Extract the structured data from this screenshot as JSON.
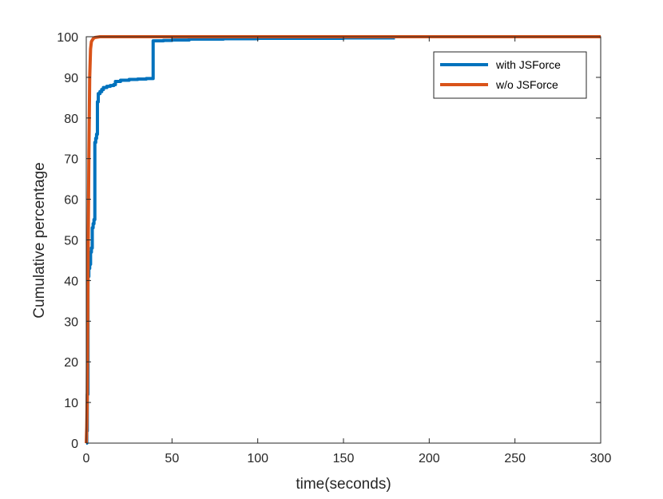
{
  "chart_data": {
    "type": "line",
    "xlabel": "time(seconds)",
    "ylabel": "Cumulative percentage",
    "xlim": [
      0,
      300
    ],
    "ylim": [
      0,
      100
    ],
    "xticks": [
      0,
      50,
      100,
      150,
      200,
      250,
      300
    ],
    "yticks": [
      0,
      10,
      20,
      30,
      40,
      50,
      60,
      70,
      80,
      90,
      100
    ],
    "grid": false,
    "legend_position": "top-right",
    "series": [
      {
        "name": "with JSForce",
        "color": "#0072bd",
        "step": true,
        "x": [
          0,
          0.3,
          0.6,
          1.0,
          1.5,
          2.0,
          2.5,
          3.0,
          3.5,
          4.0,
          4.5,
          5.0,
          5.5,
          6.0,
          6.5,
          7.0,
          8.0,
          9.0,
          10.0,
          12.0,
          14.0,
          16.0,
          17.0,
          20.0,
          25.0,
          30.0,
          35.0,
          38.5,
          39.0,
          45.0,
          50.0,
          60.0,
          80.0,
          100.0,
          150.0,
          180.0
        ],
        "y": [
          0,
          3,
          12,
          41,
          43,
          44,
          47,
          48,
          53,
          54,
          55,
          74,
          75,
          76,
          84,
          86,
          86.5,
          87,
          87.5,
          87.8,
          88.0,
          88.2,
          89.0,
          89.3,
          89.5,
          89.6,
          89.7,
          89.7,
          99.0,
          99.1,
          99.2,
          99.4,
          99.5,
          99.6,
          99.7,
          99.7
        ]
      },
      {
        "name": "w/o JSForce",
        "color": "#d95319",
        "step": false,
        "x": [
          0,
          0.3,
          0.6,
          1.0,
          1.5,
          2.0,
          2.5,
          3.0,
          4.0,
          5.0,
          8.0,
          15.0,
          50.0,
          100.0,
          200.0,
          300.0
        ],
        "y": [
          0,
          4,
          12,
          42,
          70,
          90,
          97,
          98.8,
          99.5,
          99.8,
          100,
          100,
          100,
          100,
          100,
          100
        ]
      }
    ]
  }
}
